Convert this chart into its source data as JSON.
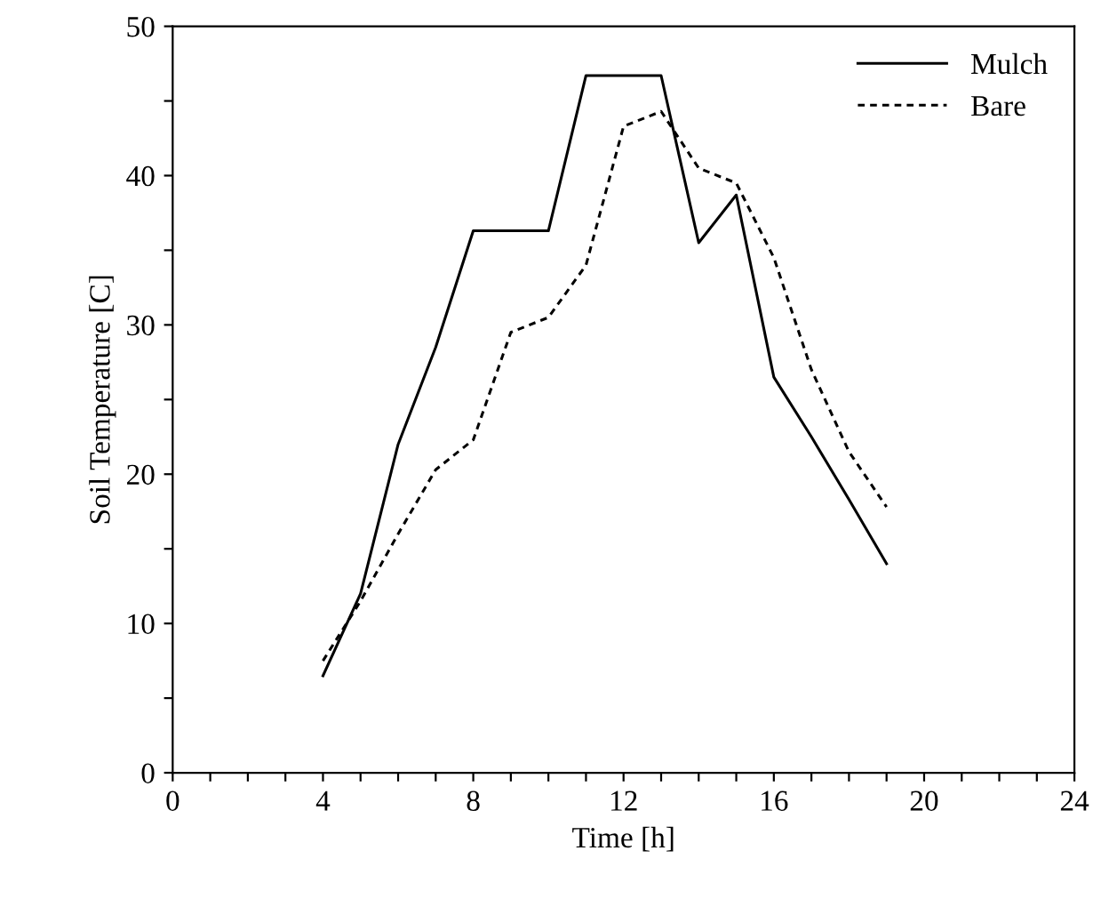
{
  "chart_data": {
    "type": "line",
    "xlabel": "Time [h]",
    "ylabel": "Soil Temperature [C]",
    "xlim": [
      0,
      24
    ],
    "ylim": [
      0,
      50
    ],
    "xticks": [
      0,
      {
        "value": 1,
        "label": null
      },
      {
        "value": 2,
        "label": null
      },
      {
        "value": 3,
        "label": null
      },
      4,
      {
        "value": 5,
        "label": null
      },
      {
        "value": 6,
        "label": null
      },
      {
        "value": 7,
        "label": null
      },
      8,
      {
        "value": 9,
        "label": null
      },
      {
        "value": 10,
        "label": null
      },
      {
        "value": 11,
        "label": null
      },
      12,
      {
        "value": 13,
        "label": null
      },
      {
        "value": 14,
        "label": null
      },
      {
        "value": 15,
        "label": null
      },
      16,
      {
        "value": 17,
        "label": null
      },
      {
        "value": 18,
        "label": null
      },
      {
        "value": 19,
        "label": null
      },
      20,
      {
        "value": 21,
        "label": null
      },
      {
        "value": 22,
        "label": null
      },
      {
        "value": 23,
        "label": null
      },
      24
    ],
    "yticks": [
      0,
      {
        "value": 5,
        "label": null
      },
      10,
      {
        "value": 15,
        "label": null
      },
      20,
      {
        "value": 25,
        "label": null
      },
      30,
      {
        "value": 35,
        "label": null
      },
      40,
      {
        "value": 45,
        "label": null
      },
      50
    ],
    "grid": false,
    "legend": "top right",
    "marker": "none",
    "series": [
      {
        "name": "Mulch",
        "color": "#000000",
        "line_style": "solid",
        "x": [
          4,
          5,
          6,
          7,
          8,
          10,
          11,
          13,
          14,
          15,
          16,
          17,
          18,
          19
        ],
        "values": [
          6.5,
          12,
          22,
          28.5,
          36.3,
          36.3,
          46.7,
          46.7,
          35.5,
          38.7,
          26.5,
          22.5,
          18.3,
          14
        ]
      },
      {
        "name": "Bare",
        "color": "#000000",
        "line_style": "dashed",
        "x": [
          4,
          5,
          6,
          7,
          8,
          9,
          10,
          11,
          12,
          13,
          14,
          15,
          16,
          17,
          18,
          19
        ],
        "values": [
          7.5,
          11.5,
          16,
          20.3,
          22.3,
          29.5,
          30.5,
          34,
          43.3,
          44.3,
          40.5,
          39.5,
          34.5,
          27,
          21.5,
          17.8
        ]
      }
    ]
  }
}
